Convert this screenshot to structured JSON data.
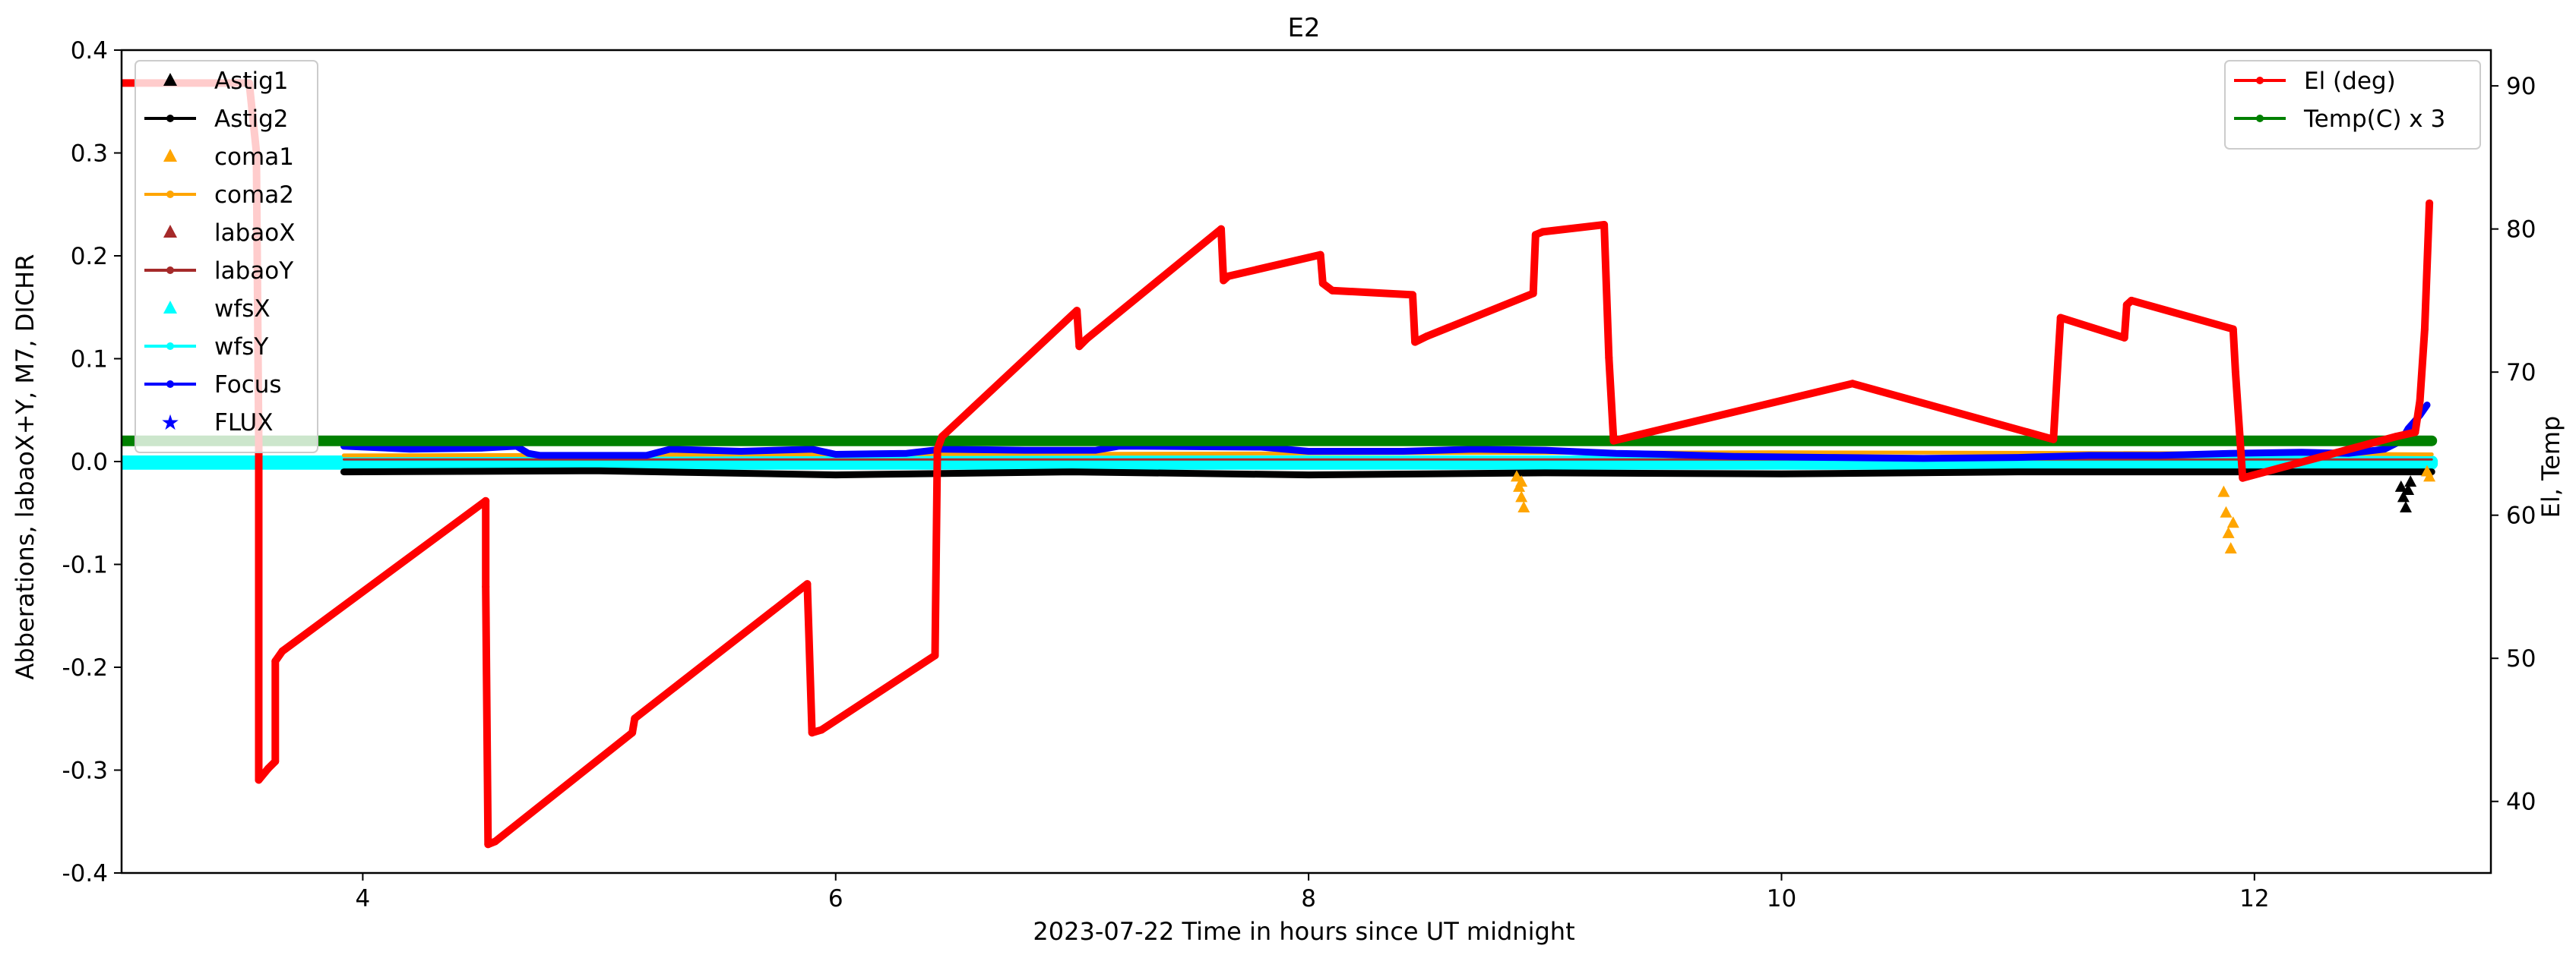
{
  "chart_data": {
    "type": "line",
    "title": "E2",
    "xlabel": "2023-07-22  Time in hours since UT midnight",
    "ylabel": "Abberations, labaoX+Y, M7, DICHR",
    "y2label": "El, Temp",
    "xlim": [
      2.98,
      13.0
    ],
    "ylim": [
      -0.4,
      0.4
    ],
    "y2lim": [
      35,
      92.5
    ],
    "x_ticks": [
      "4",
      "6",
      "8",
      "10",
      "12"
    ],
    "y_ticks": [
      "-0.4",
      "-0.3",
      "-0.2",
      "-0.1",
      "0.0",
      "0.1",
      "0.2",
      "0.3",
      "0.4"
    ],
    "y2_ticks": [
      "40",
      "50",
      "60",
      "70",
      "80",
      "90"
    ],
    "legend_left": {
      "placement": "upper-left",
      "entries": [
        {
          "name": "Astig1",
          "color": "#000000",
          "marker": "triangle"
        },
        {
          "name": "Astig2",
          "color": "#000000",
          "marker": "dot-line"
        },
        {
          "name": "coma1",
          "color": "#ffa500",
          "marker": "triangle"
        },
        {
          "name": "coma2",
          "color": "#ffa500",
          "marker": "dot-line"
        },
        {
          "name": "labaoX",
          "color": "#a52a2a",
          "marker": "triangle"
        },
        {
          "name": "labaoY",
          "color": "#a52a2a",
          "marker": "dot-line"
        },
        {
          "name": "wfsX",
          "color": "#00ffff",
          "marker": "triangle"
        },
        {
          "name": "wfsY",
          "color": "#00ffff",
          "marker": "dot-line"
        },
        {
          "name": "Focus",
          "color": "#0000ff",
          "marker": "dot-line"
        },
        {
          "name": "FLUX",
          "color": "#0000ff",
          "marker": "star"
        }
      ]
    },
    "legend_right": {
      "placement": "upper-right",
      "entries": [
        {
          "name": "El (deg)",
          "color": "#ff0000",
          "marker": "dot-line"
        },
        {
          "name": "Temp(C) x 3",
          "color": "#008000",
          "marker": "dot-line"
        }
      ]
    },
    "series": [
      {
        "name": "El (deg)",
        "axis": "right",
        "color": "#ff0000",
        "segments": [
          [
            [
              2.98,
              90.2
            ],
            [
              3.52,
              90.2
            ],
            [
              3.55,
              85.4
            ],
            [
              3.56,
              65.0
            ],
            [
              3.56,
              41.5
            ],
            [
              3.6,
              42.3
            ],
            [
              3.63,
              42.8
            ],
            [
              3.63,
              49.8
            ],
            [
              3.66,
              50.5
            ],
            [
              4.52,
              61.0
            ],
            [
              4.52,
              55.0
            ],
            [
              4.53,
              37.0
            ],
            [
              4.56,
              37.2
            ],
            [
              5.14,
              44.8
            ],
            [
              5.15,
              45.8
            ],
            [
              5.88,
              55.2
            ],
            [
              5.9,
              44.8
            ],
            [
              5.94,
              45.0
            ],
            [
              6.42,
              50.2
            ],
            [
              6.43,
              64.6
            ],
            [
              6.45,
              65.5
            ],
            [
              7.02,
              74.3
            ],
            [
              7.03,
              71.8
            ],
            [
              7.06,
              72.3
            ],
            [
              7.63,
              80.0
            ],
            [
              7.64,
              76.4
            ],
            [
              7.66,
              76.7
            ],
            [
              8.05,
              78.2
            ],
            [
              8.06,
              76.2
            ],
            [
              8.1,
              75.7
            ],
            [
              8.44,
              75.4
            ],
            [
              8.45,
              72.1
            ],
            [
              8.5,
              72.5
            ],
            [
              8.95,
              75.5
            ],
            [
              8.96,
              79.6
            ],
            [
              8.99,
              79.8
            ],
            [
              9.25,
              80.3
            ],
            [
              9.27,
              71.0
            ],
            [
              9.29,
              65.2
            ],
            [
              10.3,
              69.2
            ],
            [
              11.15,
              65.3
            ],
            [
              11.17,
              71.0
            ],
            [
              11.18,
              73.8
            ],
            [
              11.45,
              72.4
            ],
            [
              11.46,
              74.7
            ],
            [
              11.48,
              75.0
            ],
            [
              11.91,
              73.0
            ],
            [
              11.92,
              70.0
            ],
            [
              11.95,
              62.6
            ],
            [
              12.6,
              65.5
            ],
            [
              12.68,
              65.8
            ],
            [
              12.7,
              68.0
            ],
            [
              12.72,
              73.0
            ],
            [
              12.74,
              81.8
            ]
          ]
        ]
      },
      {
        "name": "Temp(C) x 3",
        "axis": "right",
        "color": "#008000",
        "segments": [
          [
            [
              2.98,
              65.2
            ],
            [
              12.75,
              65.2
            ]
          ]
        ]
      },
      {
        "name": "Focus",
        "axis": "left",
        "color": "#0000ff",
        "segments": [
          [
            [
              3.92,
              0.015
            ],
            [
              4.2,
              0.012
            ],
            [
              4.5,
              0.013
            ],
            [
              4.65,
              0.015
            ],
            [
              4.7,
              0.008
            ],
            [
              4.75,
              0.006
            ],
            [
              5.2,
              0.006
            ],
            [
              5.3,
              0.012
            ],
            [
              5.6,
              0.01
            ],
            [
              5.9,
              0.012
            ],
            [
              6.0,
              0.007
            ],
            [
              6.3,
              0.008
            ],
            [
              6.45,
              0.012
            ],
            [
              6.8,
              0.011
            ],
            [
              7.1,
              0.011
            ],
            [
              7.2,
              0.015
            ],
            [
              7.8,
              0.014
            ],
            [
              8.0,
              0.01
            ],
            [
              8.4,
              0.01
            ],
            [
              8.7,
              0.012
            ],
            [
              9.0,
              0.011
            ],
            [
              9.3,
              0.008
            ],
            [
              9.5,
              0.007
            ],
            [
              9.8,
              0.005
            ],
            [
              10.2,
              0.004
            ],
            [
              10.6,
              0.003
            ],
            [
              11.0,
              0.004
            ],
            [
              11.3,
              0.006
            ],
            [
              11.6,
              0.006
            ],
            [
              11.9,
              0.008
            ],
            [
              12.2,
              0.009
            ],
            [
              12.4,
              0.008
            ],
            [
              12.55,
              0.012
            ],
            [
              12.62,
              0.02
            ],
            [
              12.65,
              0.032
            ],
            [
              12.7,
              0.045
            ],
            [
              12.73,
              0.055
            ]
          ]
        ]
      },
      {
        "name": "coma2",
        "axis": "left",
        "color": "#ffa500",
        "segments": [
          [
            [
              3.92,
              0.006
            ],
            [
              6.0,
              0.007
            ],
            [
              8.0,
              0.008
            ],
            [
              10.0,
              0.009
            ],
            [
              12.0,
              0.008
            ],
            [
              12.75,
              0.007
            ]
          ]
        ]
      },
      {
        "name": "wfsY",
        "axis": "left",
        "color": "#00ffff",
        "segments": [
          [
            [
              2.98,
              0.0
            ],
            [
              12.75,
              0.0
            ]
          ]
        ]
      },
      {
        "name": "wfsX",
        "axis": "left",
        "color": "#00ffff",
        "segments": [
          [
            [
              2.98,
              -0.002
            ],
            [
              12.75,
              -0.002
            ]
          ]
        ]
      },
      {
        "name": "labaoY",
        "axis": "left",
        "color": "#a52a2a",
        "segments": [
          [
            [
              3.92,
              0.002
            ],
            [
              12.75,
              0.002
            ]
          ]
        ]
      },
      {
        "name": "Astig2",
        "axis": "left",
        "color": "#000000",
        "segments": [
          [
            [
              3.92,
              -0.01
            ],
            [
              5.0,
              -0.009
            ],
            [
              6.0,
              -0.013
            ],
            [
              7.0,
              -0.01
            ],
            [
              8.0,
              -0.013
            ],
            [
              9.0,
              -0.011
            ],
            [
              10.0,
              -0.012
            ],
            [
              11.0,
              -0.01
            ],
            [
              12.0,
              -0.01
            ],
            [
              12.75,
              -0.01
            ]
          ]
        ]
      }
    ],
    "scatter": [
      {
        "name": "coma1",
        "color": "#ffa500",
        "marker": "triangle",
        "points": [
          [
            8.88,
            -0.015
          ],
          [
            8.89,
            -0.025
          ],
          [
            8.9,
            -0.035
          ],
          [
            8.91,
            -0.045
          ],
          [
            8.9,
            -0.02
          ],
          [
            11.87,
            -0.03
          ],
          [
            11.88,
            -0.05
          ],
          [
            11.89,
            -0.07
          ],
          [
            11.9,
            -0.085
          ],
          [
            11.91,
            -0.06
          ],
          [
            12.73,
            -0.01
          ],
          [
            12.74,
            -0.015
          ]
        ]
      },
      {
        "name": "Astig1",
        "color": "#000000",
        "marker": "triangle",
        "points": [
          [
            12.62,
            -0.025
          ],
          [
            12.63,
            -0.035
          ],
          [
            12.64,
            -0.045
          ],
          [
            12.65,
            -0.028
          ],
          [
            12.66,
            -0.02
          ]
        ]
      }
    ]
  }
}
